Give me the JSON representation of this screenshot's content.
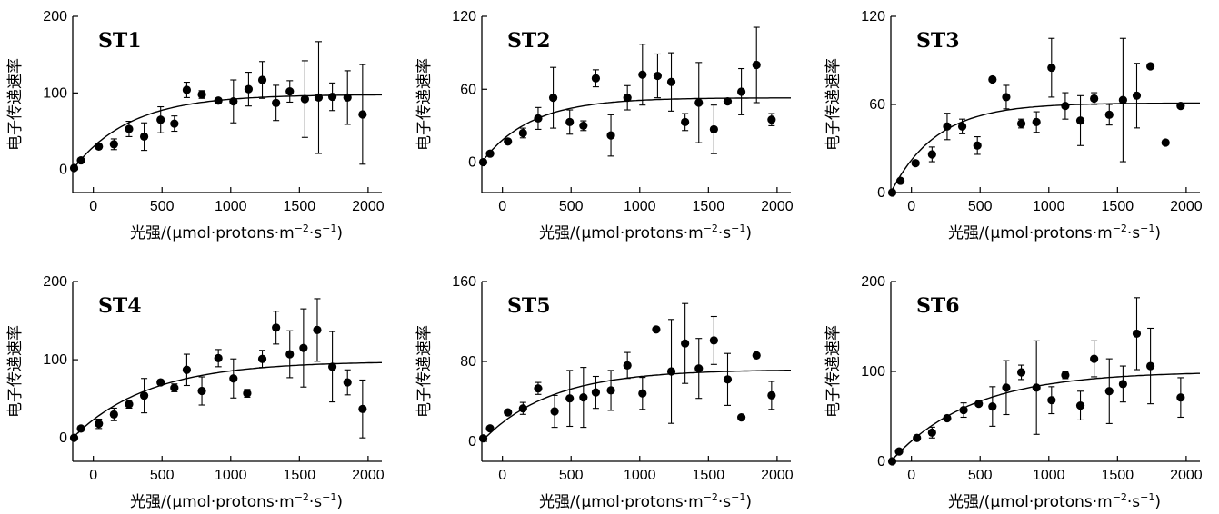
{
  "figure": {
    "xlabel_prefix": "光强",
    "xlabel_unit_a": "/(μmol·protons·m",
    "xlabel_exp1": "−2",
    "xlabel_unit_b": "·s",
    "xlabel_exp2": "−1",
    "xlabel_close": ")",
    "ylabel": "电子传递速率"
  },
  "chart_data": [
    {
      "type": "scatter",
      "title": "ST1",
      "xlabel": "光强/(μmol·protons·m−2·s−1)",
      "ylabel": "电子传递速率",
      "xlim": [
        -150,
        2100
      ],
      "ylim": [
        -30,
        200
      ],
      "xticks": [
        0,
        500,
        1000,
        1500,
        2000
      ],
      "yticks": [
        0,
        100,
        200
      ],
      "grid": false,
      "fit_curve": {
        "asymptote": 98,
        "k": 0.0024,
        "x0": -150
      },
      "points": [
        {
          "x": -140,
          "y": 2,
          "err": 0
        },
        {
          "x": -90,
          "y": 12,
          "err": 0
        },
        {
          "x": 40,
          "y": 30,
          "err": 0
        },
        {
          "x": 150,
          "y": 33,
          "err": 7
        },
        {
          "x": 260,
          "y": 53,
          "err": 10
        },
        {
          "x": 370,
          "y": 43,
          "err": 18
        },
        {
          "x": 490,
          "y": 65,
          "err": 17
        },
        {
          "x": 590,
          "y": 60,
          "err": 10
        },
        {
          "x": 680,
          "y": 104,
          "err": 10
        },
        {
          "x": 790,
          "y": 98,
          "err": 5
        },
        {
          "x": 910,
          "y": 90,
          "err": 3
        },
        {
          "x": 1020,
          "y": 89,
          "err": 28
        },
        {
          "x": 1130,
          "y": 105,
          "err": 22
        },
        {
          "x": 1230,
          "y": 117,
          "err": 24
        },
        {
          "x": 1330,
          "y": 87,
          "err": 23
        },
        {
          "x": 1430,
          "y": 102,
          "err": 14
        },
        {
          "x": 1540,
          "y": 92,
          "err": 50
        },
        {
          "x": 1640,
          "y": 94,
          "err": 73
        },
        {
          "x": 1740,
          "y": 95,
          "err": 18
        },
        {
          "x": 1850,
          "y": 94,
          "err": 35
        },
        {
          "x": 1960,
          "y": 72,
          "err": 65
        }
      ]
    },
    {
      "type": "scatter",
      "title": "ST2",
      "xlabel": "光强/(μmol·protons·m−2·s−1)",
      "ylabel": "电子传递速率",
      "xlim": [
        -150,
        2100
      ],
      "ylim": [
        -25,
        120
      ],
      "xticks": [
        0,
        500,
        1000,
        1500,
        2000
      ],
      "yticks": [
        0,
        60,
        120
      ],
      "grid": false,
      "fit_curve": {
        "asymptote": 53,
        "k": 0.0028,
        "x0": -150
      },
      "points": [
        {
          "x": -140,
          "y": 0,
          "err": 0
        },
        {
          "x": -90,
          "y": 7,
          "err": 0
        },
        {
          "x": 40,
          "y": 17,
          "err": 0
        },
        {
          "x": 150,
          "y": 24,
          "err": 4
        },
        {
          "x": 260,
          "y": 36,
          "err": 9
        },
        {
          "x": 370,
          "y": 53,
          "err": 25
        },
        {
          "x": 490,
          "y": 33,
          "err": 10
        },
        {
          "x": 590,
          "y": 30,
          "err": 4
        },
        {
          "x": 680,
          "y": 69,
          "err": 7
        },
        {
          "x": 790,
          "y": 22,
          "err": 17
        },
        {
          "x": 910,
          "y": 53,
          "err": 10
        },
        {
          "x": 1020,
          "y": 72,
          "err": 25
        },
        {
          "x": 1130,
          "y": 71,
          "err": 18
        },
        {
          "x": 1230,
          "y": 66,
          "err": 24
        },
        {
          "x": 1330,
          "y": 33,
          "err": 7
        },
        {
          "x": 1430,
          "y": 49,
          "err": 33
        },
        {
          "x": 1540,
          "y": 27,
          "err": 20
        },
        {
          "x": 1640,
          "y": 50,
          "err": 0
        },
        {
          "x": 1740,
          "y": 58,
          "err": 19
        },
        {
          "x": 1850,
          "y": 80,
          "err": 31
        },
        {
          "x": 1960,
          "y": 35,
          "err": 5
        }
      ]
    },
    {
      "type": "scatter",
      "title": "ST3",
      "xlabel": "光强/(μmol·protons·m−2·s−1)",
      "ylabel": "电子传递速率",
      "xlim": [
        -150,
        2100
      ],
      "ylim": [
        0,
        120
      ],
      "xticks": [
        0,
        500,
        1000,
        1500,
        2000
      ],
      "yticks": [
        0,
        60,
        120
      ],
      "grid": false,
      "fit_curve": {
        "asymptote": 61,
        "k": 0.003,
        "x0": -150
      },
      "points": [
        {
          "x": -140,
          "y": 0,
          "err": 0
        },
        {
          "x": -80,
          "y": 8,
          "err": 0
        },
        {
          "x": 30,
          "y": 20,
          "err": 0
        },
        {
          "x": 150,
          "y": 26,
          "err": 5
        },
        {
          "x": 260,
          "y": 45,
          "err": 9
        },
        {
          "x": 370,
          "y": 45,
          "err": 5
        },
        {
          "x": 480,
          "y": 32,
          "err": 6
        },
        {
          "x": 590,
          "y": 77,
          "err": 0
        },
        {
          "x": 690,
          "y": 65,
          "err": 8
        },
        {
          "x": 800,
          "y": 47,
          "err": 3
        },
        {
          "x": 910,
          "y": 48,
          "err": 7
        },
        {
          "x": 1020,
          "y": 85,
          "err": 20
        },
        {
          "x": 1120,
          "y": 59,
          "err": 9
        },
        {
          "x": 1230,
          "y": 49,
          "err": 17
        },
        {
          "x": 1330,
          "y": 64,
          "err": 4
        },
        {
          "x": 1440,
          "y": 53,
          "err": 7
        },
        {
          "x": 1540,
          "y": 63,
          "err": 42
        },
        {
          "x": 1640,
          "y": 66,
          "err": 22
        },
        {
          "x": 1740,
          "y": 86,
          "err": 0
        },
        {
          "x": 1850,
          "y": 34,
          "err": 0
        },
        {
          "x": 1960,
          "y": 59,
          "err": 0
        }
      ]
    },
    {
      "type": "scatter",
      "title": "ST4",
      "xlabel": "光强/(μmol·protons·m−2·s−1)",
      "ylabel": "电子传递速率",
      "xlim": [
        -150,
        2100
      ],
      "ylim": [
        -30,
        200
      ],
      "xticks": [
        0,
        500,
        1000,
        1500,
        2000
      ],
      "yticks": [
        0,
        100,
        200
      ],
      "grid": false,
      "fit_curve": {
        "asymptote": 98,
        "k": 0.0018,
        "x0": -150
      },
      "points": [
        {
          "x": -140,
          "y": 0,
          "err": 0
        },
        {
          "x": -90,
          "y": 12,
          "err": 0
        },
        {
          "x": 40,
          "y": 18,
          "err": 6
        },
        {
          "x": 150,
          "y": 30,
          "err": 8
        },
        {
          "x": 260,
          "y": 43,
          "err": 5
        },
        {
          "x": 370,
          "y": 54,
          "err": 22
        },
        {
          "x": 490,
          "y": 71,
          "err": 3
        },
        {
          "x": 590,
          "y": 64,
          "err": 5
        },
        {
          "x": 680,
          "y": 87,
          "err": 20
        },
        {
          "x": 790,
          "y": 60,
          "err": 18
        },
        {
          "x": 910,
          "y": 102,
          "err": 11
        },
        {
          "x": 1020,
          "y": 76,
          "err": 25
        },
        {
          "x": 1120,
          "y": 57,
          "err": 5
        },
        {
          "x": 1230,
          "y": 101,
          "err": 11
        },
        {
          "x": 1330,
          "y": 141,
          "err": 21
        },
        {
          "x": 1430,
          "y": 107,
          "err": 30
        },
        {
          "x": 1530,
          "y": 115,
          "err": 50
        },
        {
          "x": 1630,
          "y": 138,
          "err": 40
        },
        {
          "x": 1740,
          "y": 91,
          "err": 45
        },
        {
          "x": 1850,
          "y": 71,
          "err": 16
        },
        {
          "x": 1960,
          "y": 37,
          "err": 37
        }
      ]
    },
    {
      "type": "scatter",
      "title": "ST5",
      "xlabel": "光强/(μmol·protons·m−2·s−1)",
      "ylabel": "电子传递速率",
      "xlim": [
        -150,
        2100
      ],
      "ylim": [
        -20,
        160
      ],
      "xticks": [
        0,
        500,
        1000,
        1500,
        2000
      ],
      "yticks": [
        0,
        80,
        160
      ],
      "grid": false,
      "fit_curve": {
        "asymptote": 72,
        "k": 0.002,
        "x0": -150
      },
      "points": [
        {
          "x": -140,
          "y": 3,
          "err": 0
        },
        {
          "x": -90,
          "y": 13,
          "err": 0
        },
        {
          "x": 40,
          "y": 29,
          "err": 0
        },
        {
          "x": 150,
          "y": 33,
          "err": 6
        },
        {
          "x": 260,
          "y": 53,
          "err": 6
        },
        {
          "x": 380,
          "y": 30,
          "err": 16
        },
        {
          "x": 490,
          "y": 43,
          "err": 28
        },
        {
          "x": 590,
          "y": 44,
          "err": 30
        },
        {
          "x": 680,
          "y": 49,
          "err": 16
        },
        {
          "x": 790,
          "y": 51,
          "err": 20
        },
        {
          "x": 910,
          "y": 76,
          "err": 13
        },
        {
          "x": 1020,
          "y": 48,
          "err": 16
        },
        {
          "x": 1120,
          "y": 112,
          "err": 0
        },
        {
          "x": 1230,
          "y": 70,
          "err": 52
        },
        {
          "x": 1330,
          "y": 98,
          "err": 40
        },
        {
          "x": 1430,
          "y": 73,
          "err": 30
        },
        {
          "x": 1540,
          "y": 101,
          "err": 24
        },
        {
          "x": 1640,
          "y": 62,
          "err": 26
        },
        {
          "x": 1740,
          "y": 24,
          "err": 0
        },
        {
          "x": 1850,
          "y": 86,
          "err": 0
        },
        {
          "x": 1960,
          "y": 46,
          "err": 14
        }
      ]
    },
    {
      "type": "scatter",
      "title": "ST6",
      "xlabel": "光强/(μmol·protons·m−2·s−1)",
      "ylabel": "电子传递速率",
      "xlim": [
        -150,
        2100
      ],
      "ylim": [
        0,
        200
      ],
      "xticks": [
        0,
        500,
        1000,
        1500,
        2000
      ],
      "yticks": [
        0,
        100,
        200
      ],
      "grid": false,
      "fit_curve": {
        "asymptote": 100,
        "k": 0.0017,
        "x0": -150
      },
      "points": [
        {
          "x": -140,
          "y": 0,
          "err": 0
        },
        {
          "x": -90,
          "y": 11,
          "err": 0
        },
        {
          "x": 40,
          "y": 26,
          "err": 0
        },
        {
          "x": 150,
          "y": 32,
          "err": 6
        },
        {
          "x": 260,
          "y": 48,
          "err": 0
        },
        {
          "x": 380,
          "y": 57,
          "err": 8
        },
        {
          "x": 490,
          "y": 64,
          "err": 0
        },
        {
          "x": 590,
          "y": 61,
          "err": 22
        },
        {
          "x": 690,
          "y": 82,
          "err": 30
        },
        {
          "x": 800,
          "y": 99,
          "err": 8
        },
        {
          "x": 910,
          "y": 82,
          "err": 52
        },
        {
          "x": 1020,
          "y": 68,
          "err": 15
        },
        {
          "x": 1120,
          "y": 96,
          "err": 4
        },
        {
          "x": 1230,
          "y": 62,
          "err": 16
        },
        {
          "x": 1330,
          "y": 114,
          "err": 20
        },
        {
          "x": 1440,
          "y": 78,
          "err": 36
        },
        {
          "x": 1540,
          "y": 86,
          "err": 20
        },
        {
          "x": 1640,
          "y": 142,
          "err": 40
        },
        {
          "x": 1740,
          "y": 106,
          "err": 42
        },
        {
          "x": 1960,
          "y": 71,
          "err": 22
        }
      ]
    }
  ]
}
